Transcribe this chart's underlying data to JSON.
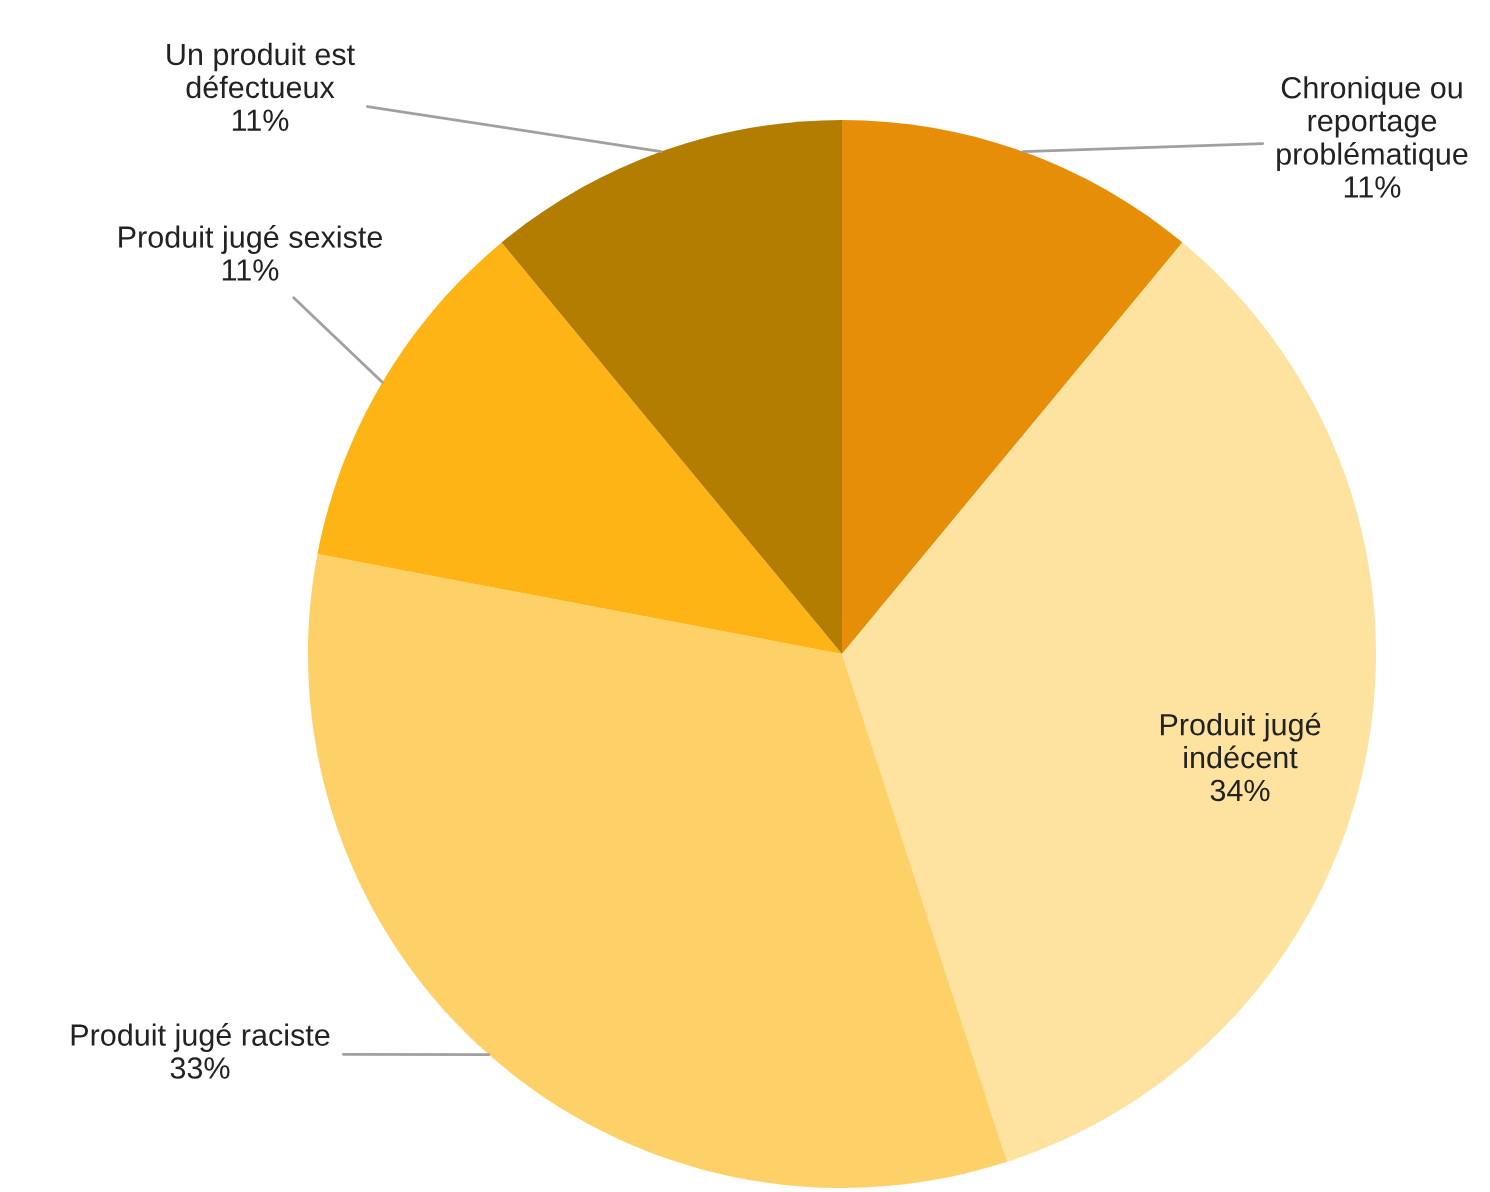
{
  "chart_data": {
    "type": "pie",
    "categories": [
      "Chronique ou\nreportage\nproblématique",
      "Produit jugé\nindécent",
      "Produit jugé raciste",
      "Produit jugé sexiste",
      "Un produit est\ndéfectueux"
    ],
    "values": [
      11,
      34,
      33,
      11,
      11
    ],
    "colors": [
      "#e68e07",
      "#fee29f",
      "#fed068",
      "#fdb414",
      "#b27d00"
    ],
    "value_labels": [
      "11%",
      "34%",
      "33%",
      "11%",
      "11%"
    ]
  }
}
